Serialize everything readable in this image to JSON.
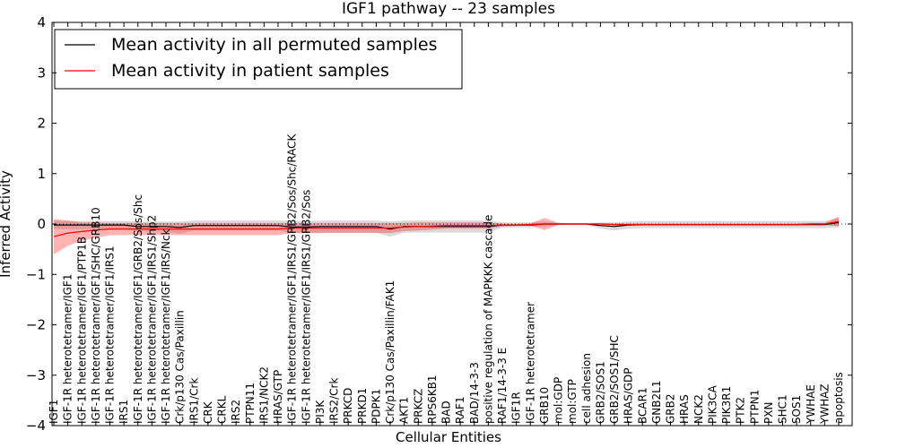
{
  "chart_data": {
    "type": "line",
    "title": "IGF1 pathway -- 23 samples",
    "xlabel": "Cellular Entities",
    "ylabel": "Inferred Activity",
    "ylim": [
      -4,
      4
    ],
    "yticks": [
      -4,
      -3,
      -2,
      -1,
      0,
      1,
      2,
      3,
      4
    ],
    "ytick_labels": [
      "−4",
      "−3",
      "−2",
      "−1",
      "0",
      "1",
      "2",
      "3",
      "4"
    ],
    "legend": [
      {
        "label": "Mean activity in all permuted samples",
        "color": "#000000"
      },
      {
        "label": "Mean activity in patient samples",
        "color": "#ff0000"
      }
    ],
    "categories": [
      "IGF1",
      "IGF-1R heterotetramer/IGF1",
      "IGF-1R heterotetramer/IGF1/PTP1B",
      "IGF-1R heterotetramer/IGF1/SHC/GRB10",
      "IGF-1R heterotetramer/IGF1/IRS1",
      "IRS1",
      "IGF-1R heterotetramer/IGF1/GRB2/Sos/Shc",
      "IGF-1R heterotetramer/IGF1/IRS1/Shp2",
      "IGF-1R heterotetramer/IGF1/IRS/Nck",
      "Crk/p130 Cas/Paxillin",
      "IRS1/Crk",
      "CRK",
      "CRKL",
      "IRS2",
      "PTPN11",
      "IRS1/NCK2",
      "HRAS/GTP",
      "IGF-1R heterotetramer/IGF1/IRS1/GRB2/Sos/Shc/RACK",
      "IGF-1R heterotetramer/IGF1/IRS1/GRB2/Sos",
      "PI3K",
      "IRS2/Crk",
      "PRKCD",
      "PRKD1",
      "PDPK1",
      "Crk/p130 Cas/Paxillin/FAK1",
      "AKT1",
      "PRKCZ",
      "RPS6KB1",
      "BAD",
      "RAF1",
      "BAD/14-3-3",
      "positive regulation of MAPKKK cascade",
      "RAF1/14-3-3 E",
      "IGF1R",
      "IGF-1R heterotetramer",
      "GRB10",
      "mol:GDP",
      "mol:GTP",
      "cell adhesion",
      "GRB2/SOS1",
      "GRB2/SOS1/SHC",
      "HRAS/GDP",
      "BCAR1",
      "GNB2L1",
      "GRB2",
      "HRAS",
      "NCK2",
      "PIK3CA",
      "PIK3R1",
      "PTK2",
      "PTPN1",
      "PXN",
      "SHC1",
      "SOS1",
      "YWHAE",
      "YWHAZ",
      "apoptosis"
    ],
    "series": [
      {
        "name": "Mean activity in all permuted samples",
        "color": "#000000",
        "values": [
          -0.02,
          -0.02,
          -0.02,
          -0.02,
          -0.02,
          -0.02,
          -0.05,
          -0.05,
          -0.05,
          -0.07,
          -0.03,
          -0.03,
          -0.03,
          -0.03,
          -0.03,
          -0.03,
          -0.03,
          -0.06,
          -0.06,
          -0.05,
          -0.05,
          -0.05,
          -0.05,
          -0.05,
          -0.1,
          -0.05,
          -0.05,
          -0.05,
          -0.05,
          -0.05,
          -0.05,
          -0.05,
          -0.02,
          -0.02,
          -0.02,
          0.0,
          0.0,
          0.0,
          0.0,
          -0.03,
          -0.05,
          -0.02,
          -0.01,
          -0.01,
          -0.01,
          -0.01,
          -0.01,
          -0.01,
          -0.01,
          -0.01,
          -0.01,
          -0.01,
          -0.01,
          -0.01,
          -0.01,
          -0.01,
          0.03
        ],
        "band": [
          0.08,
          0.08,
          0.08,
          0.08,
          0.08,
          0.08,
          0.1,
          0.1,
          0.1,
          0.12,
          0.1,
          0.1,
          0.1,
          0.1,
          0.1,
          0.1,
          0.1,
          0.12,
          0.12,
          0.12,
          0.12,
          0.12,
          0.12,
          0.12,
          0.15,
          0.12,
          0.12,
          0.12,
          0.12,
          0.12,
          0.12,
          0.12,
          0.05,
          0.05,
          0.05,
          0.05,
          0.02,
          0.02,
          0.02,
          0.06,
          0.08,
          0.07,
          0.07,
          0.07,
          0.07,
          0.07,
          0.07,
          0.07,
          0.07,
          0.07,
          0.07,
          0.07,
          0.07,
          0.07,
          0.07,
          0.07,
          0.09
        ]
      },
      {
        "name": "Mean activity in patient samples",
        "color": "#ff0000",
        "values": [
          -0.25,
          -0.18,
          -0.15,
          -0.12,
          -0.1,
          -0.1,
          -0.1,
          -0.1,
          -0.1,
          -0.1,
          -0.1,
          -0.1,
          -0.1,
          -0.1,
          -0.1,
          -0.1,
          -0.1,
          -0.08,
          -0.08,
          -0.08,
          -0.08,
          -0.08,
          -0.08,
          -0.08,
          -0.08,
          -0.06,
          -0.05,
          -0.04,
          -0.03,
          -0.03,
          -0.03,
          -0.03,
          -0.02,
          -0.02,
          -0.01,
          0.0,
          0.0,
          0.0,
          0.0,
          0.0,
          -0.01,
          -0.01,
          -0.01,
          -0.01,
          -0.01,
          -0.01,
          -0.01,
          -0.01,
          -0.01,
          -0.01,
          -0.01,
          -0.01,
          -0.01,
          -0.01,
          0.0,
          0.0,
          0.05
        ],
        "band": [
          0.35,
          0.25,
          0.18,
          0.15,
          0.12,
          0.12,
          0.12,
          0.12,
          0.12,
          0.12,
          0.12,
          0.12,
          0.12,
          0.12,
          0.12,
          0.12,
          0.12,
          0.1,
          0.1,
          0.1,
          0.1,
          0.1,
          0.1,
          0.1,
          0.1,
          0.08,
          0.08,
          0.07,
          0.06,
          0.06,
          0.06,
          0.06,
          0.03,
          0.02,
          0.02,
          0.12,
          0.02,
          0.01,
          0.01,
          0.01,
          0.02,
          0.02,
          0.02,
          0.02,
          0.02,
          0.02,
          0.02,
          0.02,
          0.02,
          0.02,
          0.02,
          0.02,
          0.02,
          0.02,
          0.02,
          0.02,
          0.1
        ]
      }
    ],
    "zero_line": "dotted"
  }
}
